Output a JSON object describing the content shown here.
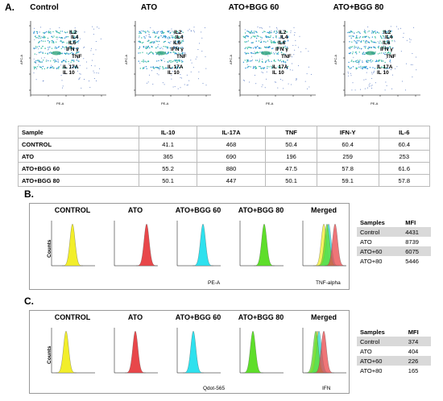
{
  "panels": {
    "a": "A.",
    "b": "B.",
    "c": "C."
  },
  "scatter": {
    "titles": [
      "Control",
      "ATO",
      "ATO+BGG 60",
      "ATO+BGG 80"
    ],
    "xaxis": "PE-A",
    "yaxis": "APC-A",
    "labels": [
      "IL2",
      "IL4",
      "IL6",
      "IFN γ",
      "TNF",
      "IL 17A",
      "IL 10"
    ]
  },
  "cytokine_table": {
    "headers": [
      "Sample",
      "IL-10",
      "IL-17A",
      "TNF",
      "IFN-Y",
      "IL-6"
    ],
    "rows": [
      [
        "CONTROL",
        "41.1",
        "468",
        "50.4",
        "60.4",
        "60.4"
      ],
      [
        "ATO",
        "365",
        "690",
        "196",
        "259",
        "253"
      ],
      [
        "ATO+BGG 60",
        "55.2",
        "880",
        "47.5",
        "57.8",
        "61.6"
      ],
      [
        "ATO+BGG 80",
        "50.1",
        "447",
        "50.1",
        "59.1",
        "57.8"
      ]
    ]
  },
  "hist_b": {
    "titles": [
      "CONTROL",
      "ATO",
      "ATO+BGG 60",
      "ATO+BGG 80",
      "Merged"
    ],
    "ylabel": "Counts",
    "xlabel": "PE-A",
    "marker": "TNF-alpha",
    "mfi_headers": [
      "Samples",
      "MFI"
    ],
    "mfi": [
      [
        "Control",
        "4431"
      ],
      [
        "ATO",
        "8739"
      ],
      [
        "ATO+60",
        "6075"
      ],
      [
        "ATO+80",
        "5446"
      ]
    ]
  },
  "hist_c": {
    "titles": [
      "CONTROL",
      "ATO",
      "ATO+BGG 60",
      "ATO+BGG 80",
      "Merged"
    ],
    "ylabel": "Counts",
    "xlabel": "Qdot-565",
    "marker": "IFN",
    "mfi_headers": [
      "Samples",
      "MFI"
    ],
    "mfi": [
      [
        "Control",
        "374"
      ],
      [
        "ATO",
        "404"
      ],
      [
        "ATO+60",
        "226"
      ],
      [
        "ATO+80",
        "165"
      ]
    ]
  },
  "colors": {
    "control": "#f2ee2a",
    "ato": "#e8474a",
    "bgg60": "#2ee1ee",
    "bgg80": "#5ede2a"
  }
}
